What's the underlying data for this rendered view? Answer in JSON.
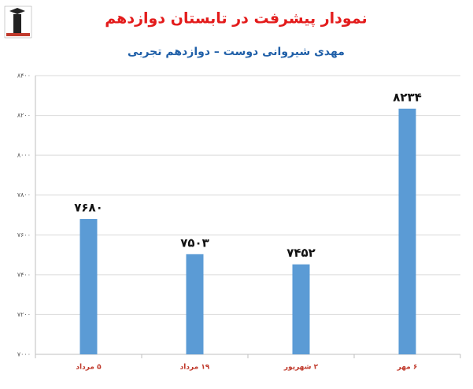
{
  "chart_data": {
    "type": "bar",
    "title": "نمودار پیشرفت در تابستان دوازدهم",
    "subtitle": "مهدی شیروانی دوست – دوازدهم تجربی",
    "categories": [
      "۵ مرداد",
      "۱۹ مرداد",
      "۲ شهریور",
      "۶ مهر"
    ],
    "values": [
      7680,
      7503,
      7452,
      8234
    ],
    "value_labels": [
      "۷۶۸۰",
      "۷۵۰۳",
      "۷۴۵۲",
      "۸۲۳۴"
    ],
    "color": "#5b9bd5",
    "ylim": [
      7000,
      8400
    ],
    "yticks": [
      {
        "value": 7000,
        "label": "۷۰۰۰"
      },
      {
        "value": 7200,
        "label": "۷۲۰۰"
      },
      {
        "value": 7400,
        "label": "۷۴۰۰"
      },
      {
        "value": 7600,
        "label": "۷۶۰۰"
      },
      {
        "value": 7800,
        "label": "۷۸۰۰"
      },
      {
        "value": 8000,
        "label": "۸۰۰۰"
      },
      {
        "value": 8200,
        "label": "۸۲۰۰"
      },
      {
        "value": 8400,
        "label": "۸۴۰۰"
      }
    ],
    "grid": true
  }
}
